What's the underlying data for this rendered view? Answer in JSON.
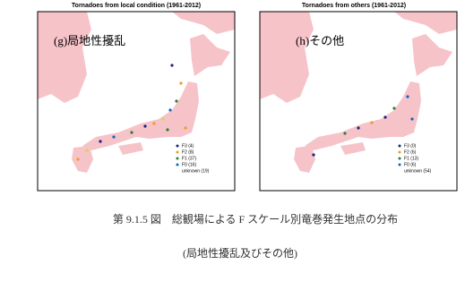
{
  "panels": [
    {
      "title": "Tornadoes from local condition (1961-2012)",
      "label": "(g)局地性擾乱",
      "legend": [
        "F3 (4)",
        "F2 (8)",
        "F1 (37)",
        "F0 (16)",
        "unknown (19)"
      ]
    },
    {
      "title": "Tornadoes from others (1961-2012)",
      "label": "(h)その他",
      "legend": [
        "F3 (0)",
        "F2 (6)",
        "F1 (13)",
        "F0 (6)",
        "unknown (54)"
      ]
    }
  ],
  "caption": {
    "line1": "第 9.1.5 図　総観場による F スケール別竜巻発生地点の分布",
    "line2": "(局地性擾乱及びその他)"
  }
}
